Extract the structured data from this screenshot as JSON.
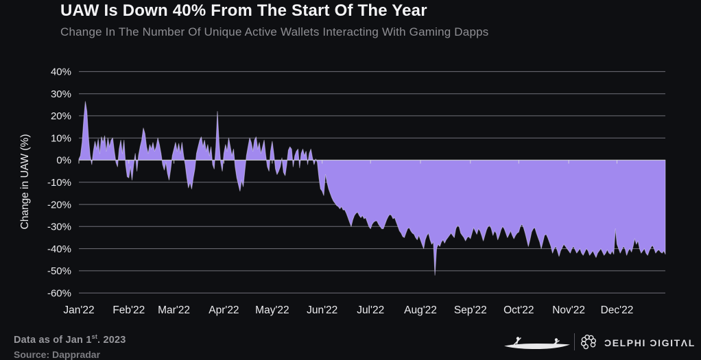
{
  "header": {
    "title": "UAW Is Down 40% From The Start Of The Year",
    "subtitle": "Change In The Number Of Unique Active Wallets Interacting With Gaming Dapps"
  },
  "chart_data": {
    "type": "area",
    "title": "UAW Is Down 40% From The Start Of The Year",
    "subtitle": "Change In The Number Of Unique Active Wallets Interacting With Gaming Dapps",
    "xlabel": "",
    "ylabel": "Change in UAW (%)",
    "ylim": [
      -60,
      40
    ],
    "grid": "horizontal",
    "legend": "none",
    "baseline": 0,
    "x_unit": "day",
    "x_range": [
      "2022-01-01",
      "2022-12-31"
    ],
    "y_ticks": [
      {
        "label": "40%",
        "value": 40
      },
      {
        "label": "30%",
        "value": 30
      },
      {
        "label": "20%",
        "value": 20
      },
      {
        "label": "10%",
        "value": 10
      },
      {
        "label": "0%",
        "value": 0
      },
      {
        "label": "-10%",
        "value": -10
      },
      {
        "label": "-20%",
        "value": -20
      },
      {
        "label": "-30%",
        "value": -30
      },
      {
        "label": "-40%",
        "value": -40
      },
      {
        "label": "-50%",
        "value": -50
      },
      {
        "label": "-60%",
        "value": -60
      }
    ],
    "x_ticks": [
      {
        "label": "Jan'22",
        "day": 0
      },
      {
        "label": "Feb'22",
        "day": 31
      },
      {
        "label": "Mar'22",
        "day": 59
      },
      {
        "label": "Apr'22",
        "day": 90
      },
      {
        "label": "May'22",
        "day": 120
      },
      {
        "label": "Jun'22",
        "day": 151
      },
      {
        "label": "Jul'22",
        "day": 181
      },
      {
        "label": "Aug'22",
        "day": 212
      },
      {
        "label": "Sep'22",
        "day": 243
      },
      {
        "label": "Oct'22",
        "day": 273
      },
      {
        "label": "Nov'22",
        "day": 304
      },
      {
        "label": "Dec'22",
        "day": 334
      }
    ],
    "series": [
      {
        "name": "Change in UAW (%)",
        "frequency": "daily",
        "values": [
          0.5,
          2,
          8,
          18,
          26.5,
          22,
          10,
          2,
          -2,
          4,
          8.5,
          5,
          9.5,
          3,
          10.5,
          8,
          11,
          4,
          10,
          6,
          9,
          10,
          4,
          -1,
          -3,
          5,
          9,
          3,
          9,
          -2,
          -7.5,
          -8,
          -3,
          -9,
          -2,
          3,
          -5,
          2,
          6,
          9,
          14.5,
          12,
          6,
          3,
          7,
          5,
          8,
          4,
          6,
          10,
          7,
          3,
          -2,
          -4.5,
          -1,
          -6,
          -9,
          -4,
          2,
          5,
          8,
          4,
          7.5,
          3,
          8,
          2,
          -2,
          -8,
          -12.5,
          -10,
          -13,
          -8,
          -4,
          3,
          6,
          9,
          10.5,
          6,
          9,
          4,
          7,
          2,
          6,
          -2,
          -4,
          6,
          22,
          8,
          -1,
          -5,
          3,
          7,
          4,
          10,
          6,
          2,
          5,
          -3,
          -8,
          -11,
          -14,
          -9,
          -12,
          -5,
          2,
          6,
          10,
          8,
          4,
          9,
          10.5,
          5,
          8,
          3,
          6,
          9,
          2,
          -3,
          -5,
          4,
          8.5,
          3,
          -4,
          -6.5,
          -5,
          -3,
          1,
          -5.5,
          -7,
          -2,
          4.5,
          6,
          5,
          -3,
          2,
          4,
          5,
          -3.5,
          3,
          5,
          2,
          4,
          -2,
          3,
          5,
          1,
          -2,
          0.5,
          -1,
          -8,
          -13,
          -14,
          -16,
          -6.5,
          -10,
          -13,
          -15,
          -17,
          -18.5,
          -19.5,
          -20.5,
          -21,
          -22,
          -21,
          -22.5,
          -22.5,
          -24,
          -26,
          -28,
          -30,
          -27,
          -25,
          -24,
          -23.5,
          -25,
          -26,
          -25,
          -26.5,
          -26,
          -28,
          -30,
          -31,
          -29,
          -28,
          -27.5,
          -27.5,
          -29,
          -30,
          -31,
          -31,
          -29,
          -27,
          -25.5,
          -24.5,
          -25,
          -26.5,
          -26,
          -28,
          -30,
          -32,
          -33,
          -34.5,
          -35,
          -33,
          -31,
          -30.5,
          -32,
          -33,
          -33.5,
          -35,
          -36,
          -34,
          -36,
          -38,
          -40,
          -36,
          -34,
          -33,
          -36,
          -38,
          -37,
          -52,
          -40,
          -38,
          -39,
          -37,
          -36,
          -37.5,
          -36,
          -35,
          -34,
          -33,
          -34,
          -35,
          -31,
          -29.5,
          -30,
          -33,
          -34,
          -35,
          -36.5,
          -35,
          -34.5,
          -35.5,
          -33,
          -30.5,
          -32,
          -33.5,
          -31,
          -32,
          -34,
          -36.5,
          -34,
          -31.5,
          -30,
          -29.5,
          -31,
          -34,
          -32,
          -33,
          -36,
          -34,
          -31.5,
          -30,
          -31,
          -33,
          -35,
          -33.5,
          -32,
          -34,
          -35.5,
          -34,
          -33,
          -32.5,
          -30,
          -29,
          -30.5,
          -33,
          -36,
          -39,
          -36,
          -32.5,
          -31,
          -30.5,
          -33,
          -35,
          -37,
          -40,
          -37,
          -34,
          -33.5,
          -35,
          -37,
          -39,
          -42,
          -40,
          -39,
          -41,
          -43.5,
          -41,
          -39.5,
          -38,
          -39,
          -40,
          -41,
          -42,
          -40,
          -39,
          -40.5,
          -42,
          -41,
          -40,
          -42,
          -43,
          -41.5,
          -40,
          -41,
          -43,
          -42,
          -41,
          -42.5,
          -44,
          -42,
          -41,
          -40,
          -41.5,
          -43,
          -42,
          -40.5,
          -42,
          -42.5,
          -41,
          -42.5,
          -31,
          -38,
          -40,
          -42,
          -40.5,
          -39,
          -40,
          -43,
          -41,
          -40,
          -41.5,
          -39,
          -35.5,
          -38,
          -36.5,
          -40,
          -42,
          -41,
          -40,
          -42,
          -43,
          -41,
          -39.5,
          -38.5,
          -40,
          -42,
          -41,
          -40.5,
          -41.5,
          -42,
          -41,
          -42.5
        ]
      }
    ],
    "colors": {
      "fill": "#a189ef",
      "fill_edge": "rgba(230,224,252,0.5)",
      "gridline": "#71717a",
      "zero_axis": "#c6c6cc",
      "tick": "#d9d9de",
      "axis_label": "#ececef",
      "background": "#0e0f12"
    }
  },
  "footer": {
    "note_prefix": "Data as of Jan 1",
    "note_sup": "st",
    "note_suffix": ". 2023",
    "source": "Source: Dappradar",
    "logo_text": "ƆELPHI ƆIGITΛL",
    "logo_alt": "Delphi Digital"
  }
}
